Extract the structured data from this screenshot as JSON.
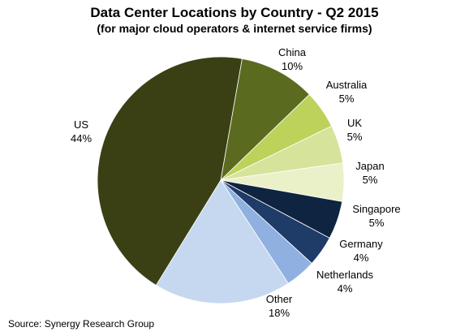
{
  "chart_data": {
    "type": "pie",
    "title": "Data Center Locations by Country - Q2 2015",
    "subtitle": "(for major cloud operators & internet service firms)",
    "source": "Source: Synergy Research Group",
    "slices": [
      {
        "name": "China",
        "label": "10%",
        "value": 10,
        "color": "#5a6b1f"
      },
      {
        "name": "Australia",
        "label": "5%",
        "value": 5,
        "color": "#bcd25a"
      },
      {
        "name": "UK",
        "label": "5%",
        "value": 5,
        "color": "#d6e39a"
      },
      {
        "name": "Japan",
        "label": "5%",
        "value": 5,
        "color": "#eaf0c8"
      },
      {
        "name": "Singapore",
        "label": "5%",
        "value": 5,
        "color": "#0f2440"
      },
      {
        "name": "Germany",
        "label": "4%",
        "value": 4,
        "color": "#1f3b68"
      },
      {
        "name": "Netherlands",
        "label": "4%",
        "value": 4,
        "color": "#8fb0e0"
      },
      {
        "name": "Other",
        "label": "18%",
        "value": 18,
        "color": "#c6d8f0"
      },
      {
        "name": "US",
        "label": "44%",
        "value": 44,
        "color": "#3a4014"
      }
    ]
  }
}
